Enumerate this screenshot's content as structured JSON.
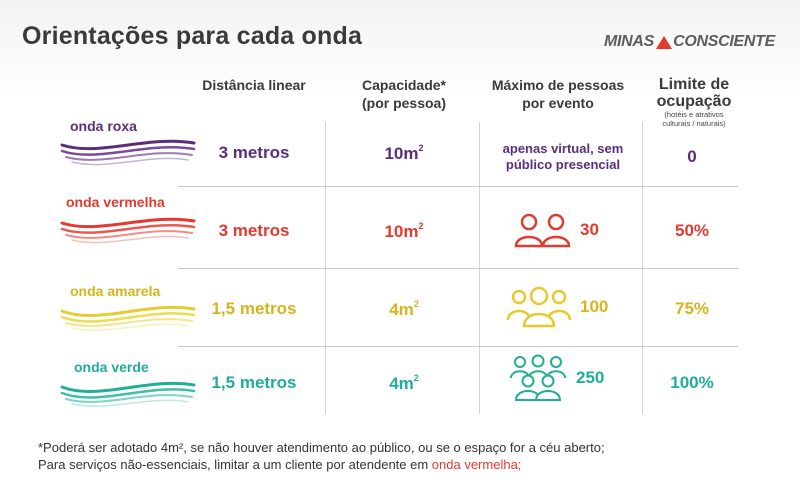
{
  "title": "Orientações para cada onda",
  "logo": {
    "left": "MINAS",
    "right": "CONSCIENTE"
  },
  "headers": {
    "distancia": "Distância linear",
    "capacidade_l1": "Capacidade*",
    "capacidade_l2": "(por pessoa)",
    "maximo_l1": "Máximo de pessoas",
    "maximo_l2": "por evento",
    "limite_l1": "Limite de",
    "limite_l2": "ocupação",
    "limite_note_l1": "(hotéis e atrativos",
    "limite_note_l2": "culturais / naturais)"
  },
  "colors": {
    "roxa": "#5b2d7d",
    "vermelha": "#e23a2f",
    "amarela": "#d6b41e",
    "verde": "#1fae96"
  },
  "rows": [
    {
      "label": "onda roxa",
      "distance": "3 metros",
      "capacity": "10m",
      "capacity_exp": "2",
      "max_l1": "apenas virtual, sem",
      "max_l2": "público presencial",
      "limit": "0"
    },
    {
      "label": "onda vermelha",
      "distance": "3 metros",
      "capacity": "10m",
      "capacity_exp": "2",
      "max": "30",
      "people_icon": "two-people-icon",
      "limit": "50%"
    },
    {
      "label": "onda amarela",
      "distance": "1,5 metros",
      "capacity": "4m",
      "capacity_exp": "2",
      "max": "100",
      "people_icon": "three-people-icon",
      "limit": "75%"
    },
    {
      "label": "onda verde",
      "distance": "1,5 metros",
      "capacity": "4m",
      "capacity_exp": "2",
      "max": "250",
      "people_icon": "five-people-icon",
      "limit": "100%"
    }
  ],
  "footer": {
    "line1": "*Poderá ser adotado 4m², se não houver atendimento ao público, ou se o espaço for a céu aberto;",
    "line2_prefix": "Para serviços não-essenciais, limitar a um cliente por atendente em ",
    "line2_highlight": "onda vermelha;"
  }
}
